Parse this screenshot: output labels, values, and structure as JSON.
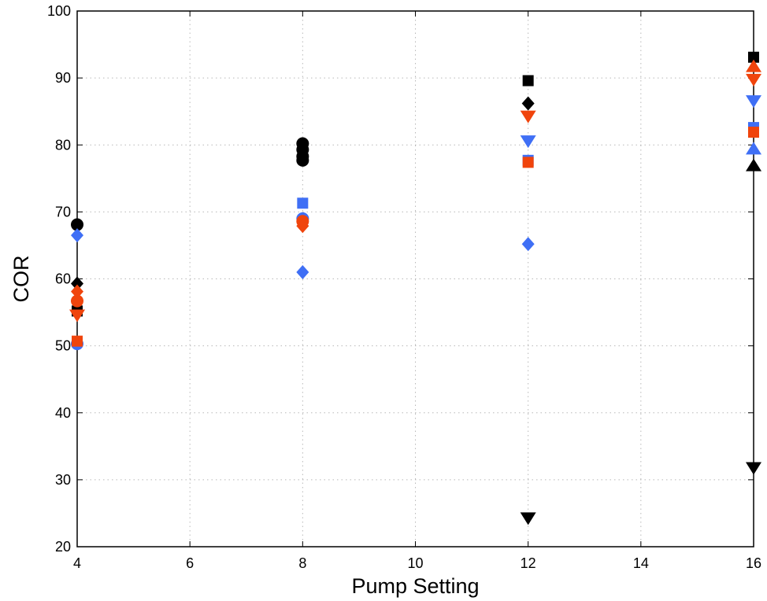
{
  "chart_data": {
    "type": "scatter",
    "title": "",
    "xlabel": "Pump Setting",
    "ylabel": "COR",
    "xlim": [
      4,
      16
    ],
    "ylim": [
      20,
      100
    ],
    "xticks": [
      4,
      6,
      8,
      10,
      12,
      14,
      16
    ],
    "yticks": [
      20,
      30,
      40,
      50,
      60,
      70,
      80,
      90,
      100
    ],
    "grid": true,
    "colors": {
      "black": "#000000",
      "blue": "#3f6ff5",
      "red": "#f0440c"
    },
    "series": [
      {
        "marker": "circle",
        "color": "#000000",
        "points": [
          [
            4,
            68.1
          ],
          [
            8,
            80.2
          ],
          [
            8,
            79.3
          ],
          [
            8,
            78.3
          ],
          [
            8,
            77.7
          ]
        ]
      },
      {
        "marker": "square",
        "color": "#000000",
        "points": [
          [
            4,
            55.2
          ],
          [
            12,
            89.6
          ],
          [
            16,
            93.1
          ]
        ]
      },
      {
        "marker": "diamond",
        "color": "#000000",
        "points": [
          [
            4,
            59.3
          ],
          [
            12,
            86.2
          ]
        ]
      },
      {
        "marker": "triangle-down",
        "color": "#000000",
        "points": [
          [
            12,
            24.3
          ],
          [
            16,
            31.8
          ]
        ]
      },
      {
        "marker": "triangle-up",
        "color": "#000000",
        "points": [
          [
            16,
            76.9
          ]
        ]
      },
      {
        "marker": "diamond",
        "color": "#3f6ff5",
        "points": [
          [
            4,
            66.5
          ],
          [
            8,
            61.0
          ],
          [
            12,
            65.2
          ]
        ]
      },
      {
        "marker": "square",
        "color": "#3f6ff5",
        "points": [
          [
            8,
            71.3
          ],
          [
            12,
            77.7
          ],
          [
            16,
            82.6
          ]
        ]
      },
      {
        "marker": "circle",
        "color": "#3f6ff5",
        "points": [
          [
            4,
            50.3
          ],
          [
            8,
            69.0
          ]
        ]
      },
      {
        "marker": "triangle-down",
        "color": "#3f6ff5",
        "points": [
          [
            12,
            80.6
          ],
          [
            16,
            86.6
          ]
        ]
      },
      {
        "marker": "triangle-up",
        "color": "#3f6ff5",
        "points": [
          [
            16,
            79.4
          ]
        ]
      },
      {
        "marker": "circle",
        "color": "#f0440c",
        "points": [
          [
            4,
            56.7
          ],
          [
            8,
            68.6
          ]
        ]
      },
      {
        "marker": "diamond",
        "color": "#f0440c",
        "points": [
          [
            4,
            58.1
          ],
          [
            8,
            67.9
          ]
        ]
      },
      {
        "marker": "triangle-down",
        "color": "#f0440c",
        "points": [
          [
            4,
            54.6
          ],
          [
            12,
            84.3
          ],
          [
            16,
            89.8
          ]
        ]
      },
      {
        "marker": "square",
        "color": "#f0440c",
        "points": [
          [
            4,
            50.7
          ],
          [
            12,
            77.4
          ],
          [
            16,
            81.9
          ]
        ]
      },
      {
        "marker": "triangle-up",
        "color": "#f0440c",
        "points": [
          [
            16,
            91.7
          ]
        ]
      }
    ]
  }
}
